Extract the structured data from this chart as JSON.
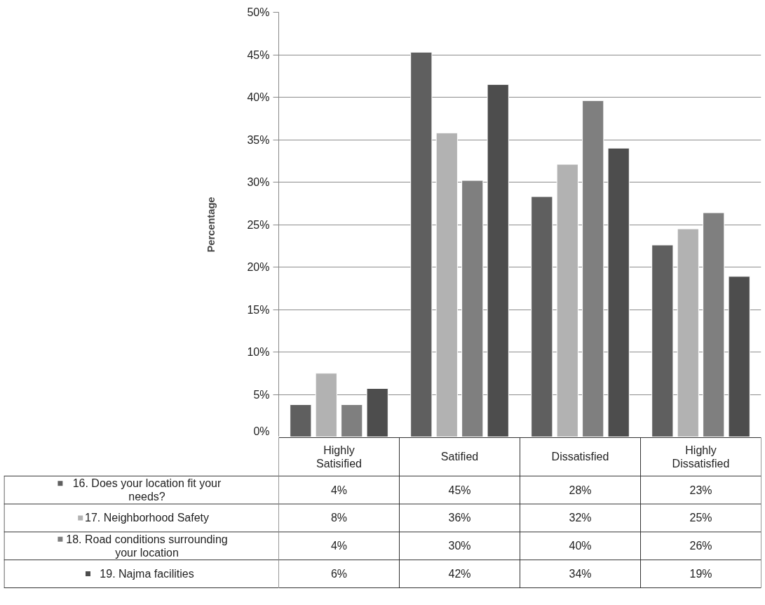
{
  "chart_data": {
    "type": "bar",
    "ylabel": "Percentage",
    "categories": [
      "Highly Satisified",
      "Satified",
      "Dissatisfied",
      "Highly Dissatisfied"
    ],
    "series": [
      {
        "name": "16. Does your location fit your needs?",
        "color": "#5f5f5f",
        "values": [
          3.8,
          45.3,
          28.3,
          22.6
        ],
        "value_labels": [
          "4%",
          "45%",
          "28%",
          "23%"
        ]
      },
      {
        "name": "17. Neighborhood Safety",
        "color": "#b2b2b2",
        "values": [
          7.5,
          35.8,
          32.1,
          24.5
        ],
        "value_labels": [
          "8%",
          "36%",
          "32%",
          "25%"
        ]
      },
      {
        "name": "18. Road conditions surrounding your location",
        "color": "#7f7f7f",
        "values": [
          3.8,
          30.2,
          39.6,
          26.4
        ],
        "value_labels": [
          "4%",
          "30%",
          "40%",
          "26%"
        ]
      },
      {
        "name": "19. Najma facilities",
        "color": "#4d4d4d",
        "values": [
          5.7,
          41.5,
          34.0,
          18.9
        ],
        "value_labels": [
          "6%",
          "42%",
          "34%",
          "19%"
        ]
      }
    ],
    "ylim": [
      0,
      50
    ],
    "yticks": [
      {
        "value": 0,
        "label": "0%"
      },
      {
        "value": 5,
        "label": "5%"
      },
      {
        "value": 10,
        "label": "10%"
      },
      {
        "value": 15,
        "label": "15%"
      },
      {
        "value": 20,
        "label": "20%"
      },
      {
        "value": 25,
        "label": "25%"
      },
      {
        "value": 30,
        "label": "30%"
      },
      {
        "value": 35,
        "label": "35%"
      },
      {
        "value": 40,
        "label": "40%"
      },
      {
        "value": 45,
        "label": "45%"
      },
      {
        "value": 50,
        "label": "50%"
      }
    ],
    "grid": "y",
    "legend": "bottom"
  }
}
